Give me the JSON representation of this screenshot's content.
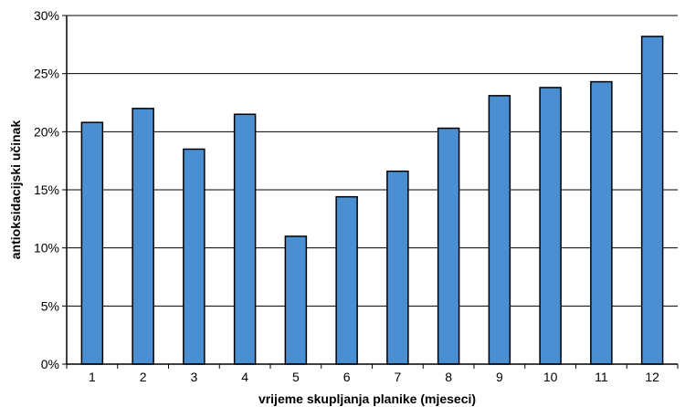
{
  "chart_data": {
    "type": "bar",
    "categories": [
      "1",
      "2",
      "3",
      "4",
      "5",
      "6",
      "7",
      "8",
      "9",
      "10",
      "11",
      "12"
    ],
    "values": [
      0.208,
      0.22,
      0.185,
      0.215,
      0.11,
      0.144,
      0.166,
      0.203,
      0.231,
      0.238,
      0.243,
      0.282
    ],
    "title": "",
    "xlabel": "vrijeme skupljanja planike (mjeseci)",
    "ylabel": "antioksidacijski učinak",
    "ylim": [
      0,
      0.3
    ],
    "yticks": [
      0,
      0.05,
      0.1,
      0.15,
      0.2,
      0.25,
      0.3
    ],
    "ytick_labels": [
      "0%",
      "5%",
      "10%",
      "15%",
      "20%",
      "25%",
      "30%"
    ],
    "grid": true,
    "legend": false,
    "colors": {
      "bar_fill": "#4a8fd1",
      "bar_stroke": "#000000",
      "grid": "#000000",
      "axis": "#000000"
    }
  }
}
